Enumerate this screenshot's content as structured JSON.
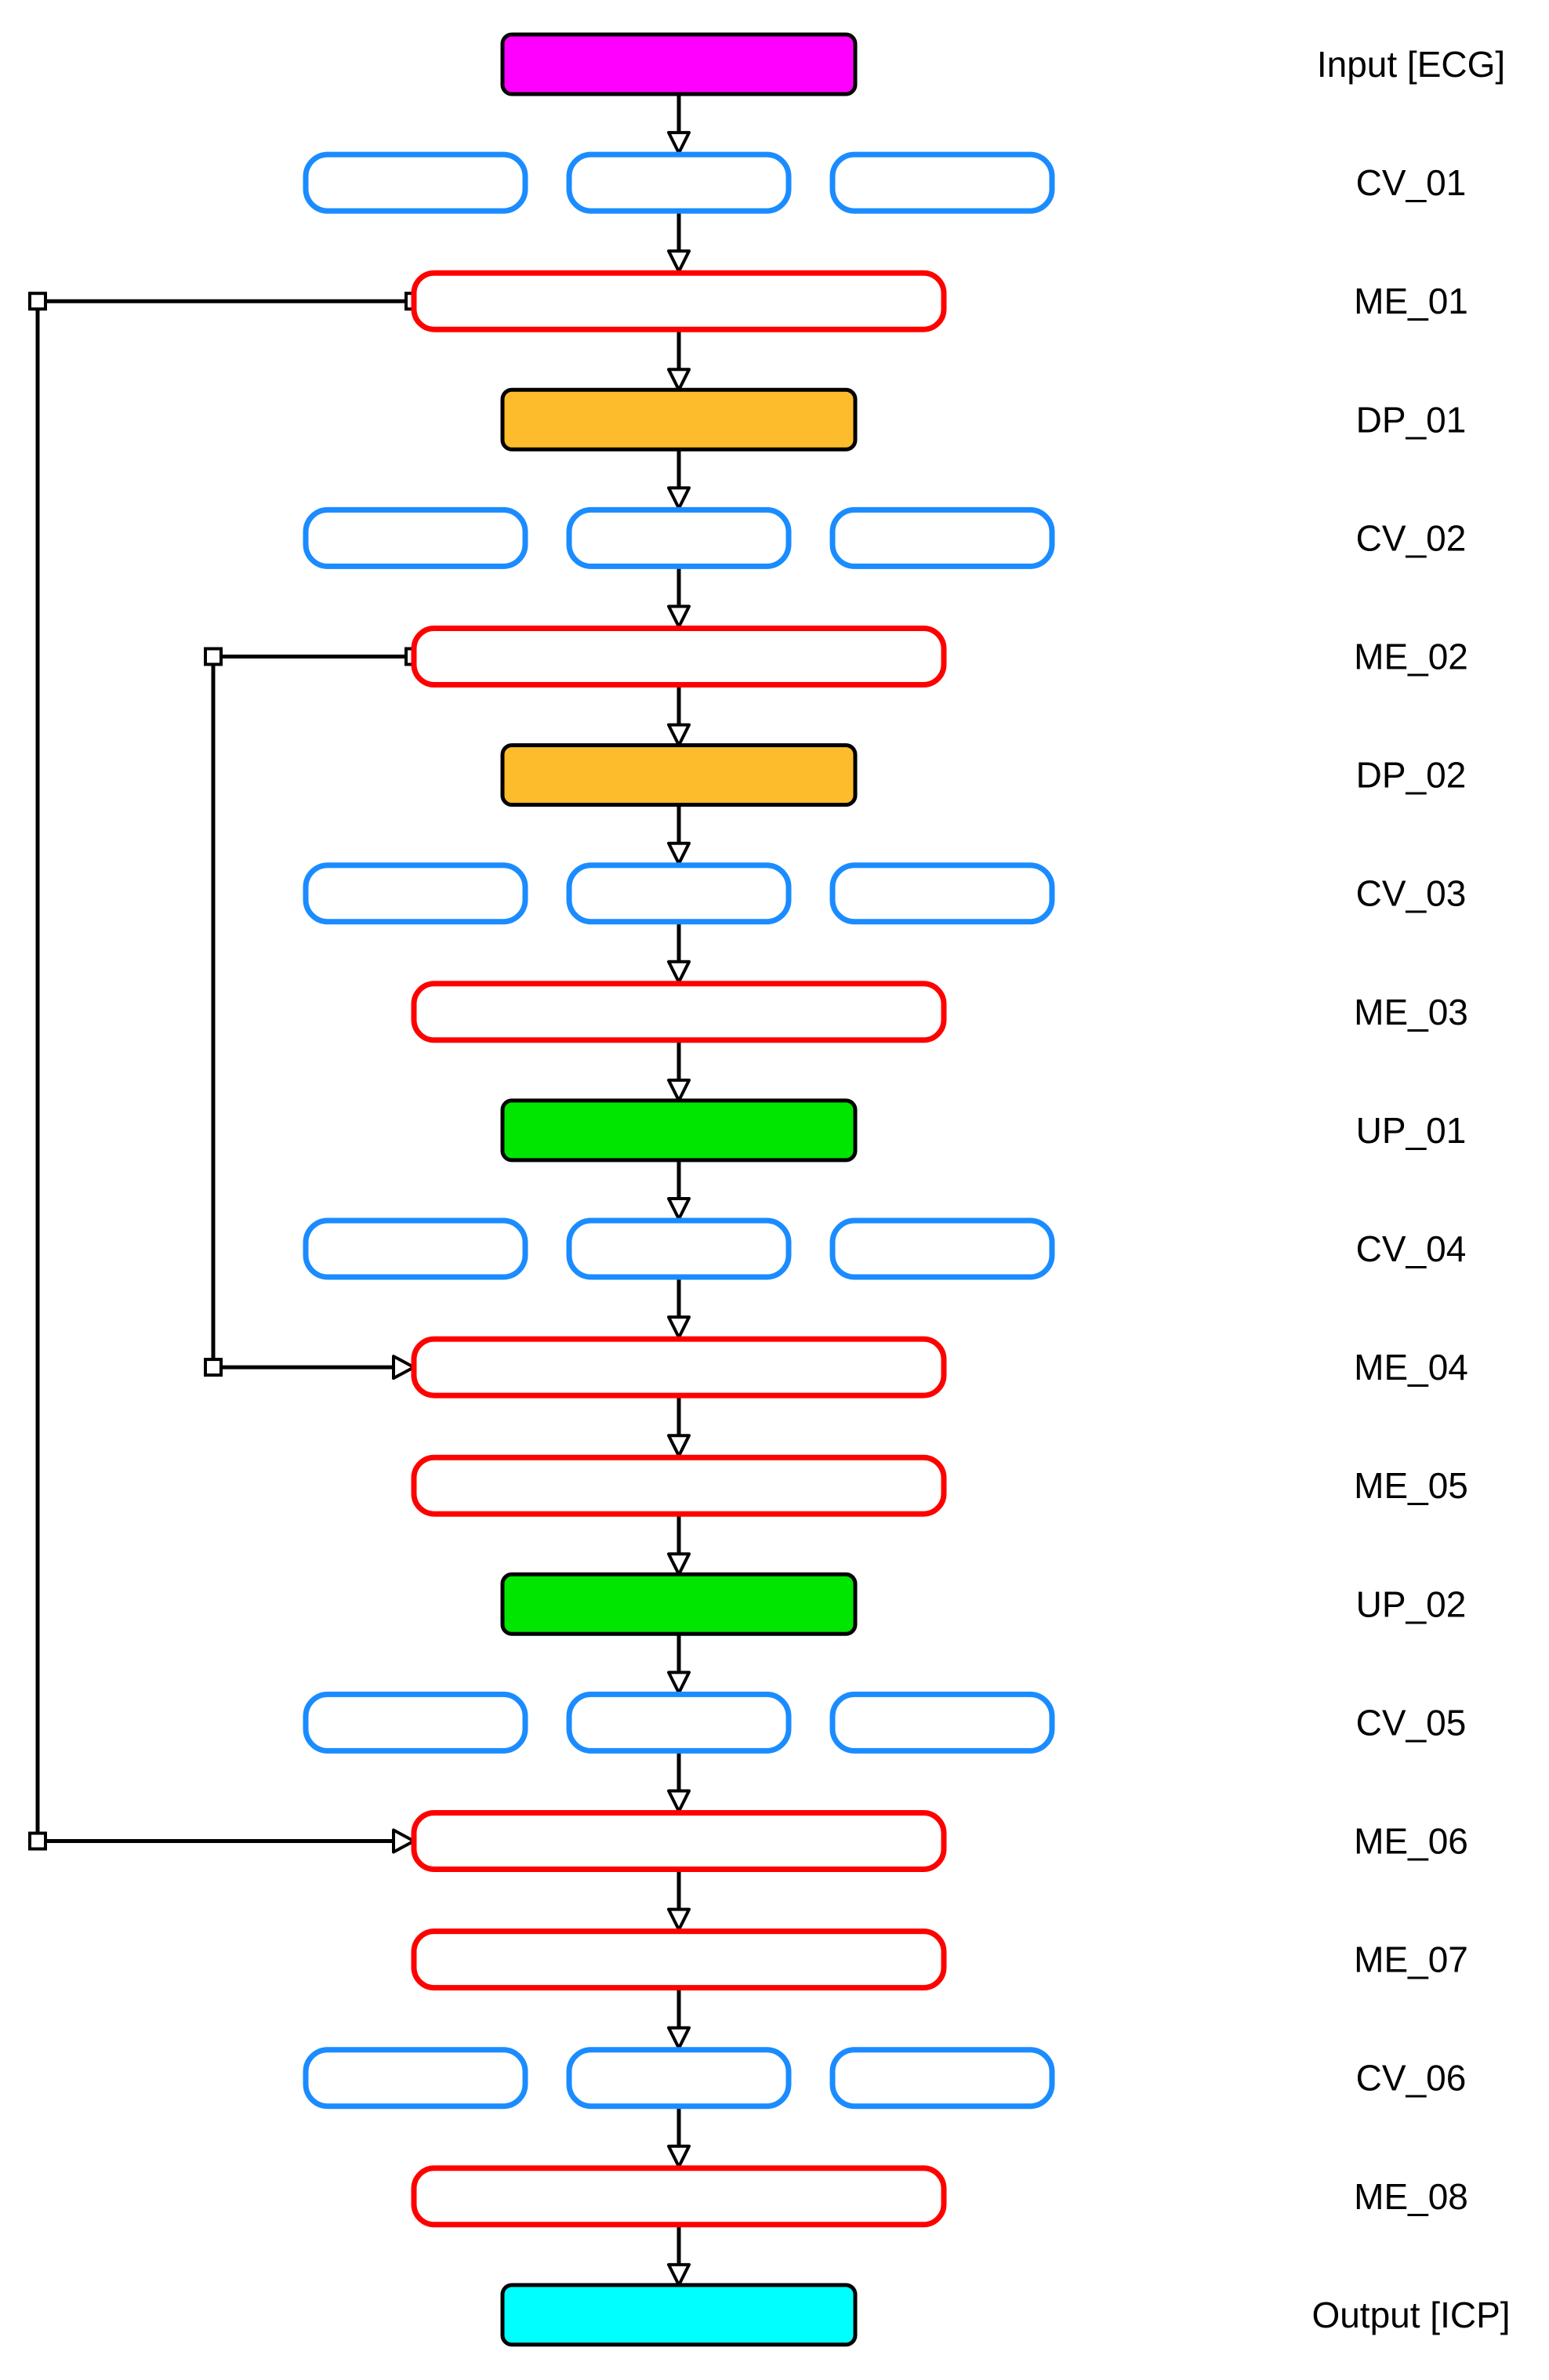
{
  "diagram": {
    "rows": [
      {
        "label": "Input [ECG]",
        "kind": "input"
      },
      {
        "label": "CV_01",
        "kind": "conv"
      },
      {
        "label": "ME_01",
        "kind": "merge"
      },
      {
        "label": "DP_01",
        "kind": "downsample"
      },
      {
        "label": "CV_02",
        "kind": "conv"
      },
      {
        "label": "ME_02",
        "kind": "merge"
      },
      {
        "label": "DP_02",
        "kind": "downsample"
      },
      {
        "label": "CV_03",
        "kind": "conv"
      },
      {
        "label": "ME_03",
        "kind": "merge"
      },
      {
        "label": "UP_01",
        "kind": "upsample"
      },
      {
        "label": "CV_04",
        "kind": "conv"
      },
      {
        "label": "ME_04",
        "kind": "merge"
      },
      {
        "label": "ME_05",
        "kind": "merge"
      },
      {
        "label": "UP_02",
        "kind": "upsample"
      },
      {
        "label": "CV_05",
        "kind": "conv"
      },
      {
        "label": "ME_06",
        "kind": "merge"
      },
      {
        "label": "ME_07",
        "kind": "merge"
      },
      {
        "label": "CV_06",
        "kind": "conv"
      },
      {
        "label": "ME_08",
        "kind": "merge"
      },
      {
        "label": "Output [ICP]",
        "kind": "output"
      }
    ],
    "skip_connections": [
      {
        "from": "ME_01",
        "to": "ME_06",
        "channel": "outer"
      },
      {
        "from": "ME_02",
        "to": "ME_04",
        "channel": "inner"
      }
    ],
    "colors": {
      "input": "#ff00ff",
      "output": "#00ffff",
      "downsample": "#fcbc2c",
      "upsample": "#00e600",
      "conv_stroke": "#1a8cff",
      "merge_stroke": "#ff0000",
      "line": "#000000"
    }
  }
}
